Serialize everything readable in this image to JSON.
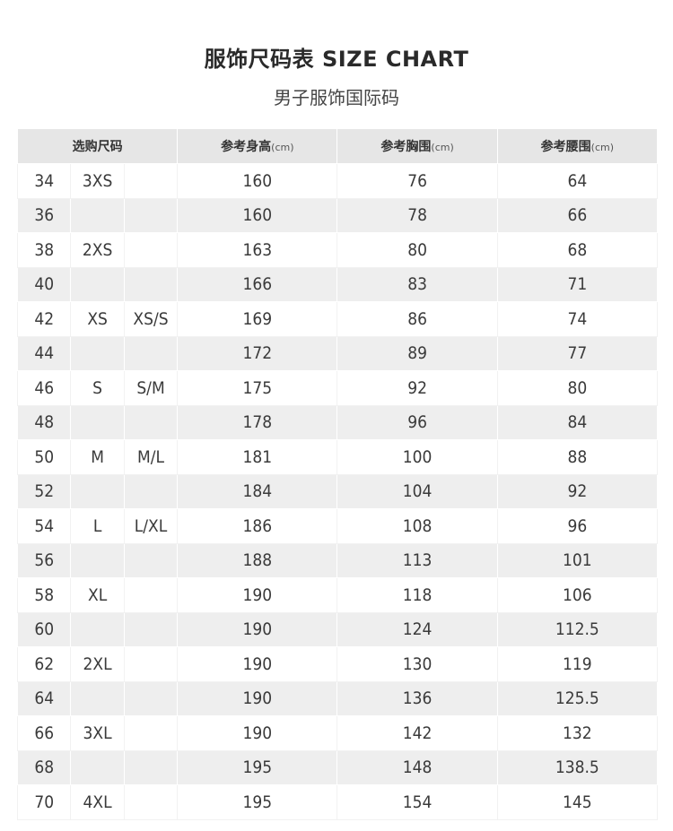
{
  "title": "服饰尺码表 SIZE CHART",
  "subtitle": "男子服饰国际码",
  "table": {
    "headers": [
      {
        "label": "选购尺码",
        "unit": ""
      },
      {
        "label": "参考身高",
        "unit": "(cm)"
      },
      {
        "label": "参考胸围",
        "unit": "(cm)"
      },
      {
        "label": "参考腰围",
        "unit": "(cm)"
      }
    ],
    "rows": [
      [
        "34",
        "3XS",
        "",
        "160",
        "76",
        "64"
      ],
      [
        "36",
        "",
        "",
        "160",
        "78",
        "66"
      ],
      [
        "38",
        "2XS",
        "",
        "163",
        "80",
        "68"
      ],
      [
        "40",
        "",
        "",
        "166",
        "83",
        "71"
      ],
      [
        "42",
        "XS",
        "XS/S",
        "169",
        "86",
        "74"
      ],
      [
        "44",
        "",
        "",
        "172",
        "89",
        "77"
      ],
      [
        "46",
        "S",
        "S/M",
        "175",
        "92",
        "80"
      ],
      [
        "48",
        "",
        "",
        "178",
        "96",
        "84"
      ],
      [
        "50",
        "M",
        "M/L",
        "181",
        "100",
        "88"
      ],
      [
        "52",
        "",
        "",
        "184",
        "104",
        "92"
      ],
      [
        "54",
        "L",
        "L/XL",
        "186",
        "108",
        "96"
      ],
      [
        "56",
        "",
        "",
        "188",
        "113",
        "101"
      ],
      [
        "58",
        "XL",
        "",
        "190",
        "118",
        "106"
      ],
      [
        "60",
        "",
        "",
        "190",
        "124",
        "112.5"
      ],
      [
        "62",
        "2XL",
        "",
        "190",
        "130",
        "119"
      ],
      [
        "64",
        "",
        "",
        "190",
        "136",
        "125.5"
      ],
      [
        "66",
        "3XL",
        "",
        "190",
        "142",
        "132"
      ],
      [
        "68",
        "",
        "",
        "195",
        "148",
        "138.5"
      ],
      [
        "70",
        "4XL",
        "",
        "195",
        "154",
        "145"
      ]
    ]
  }
}
